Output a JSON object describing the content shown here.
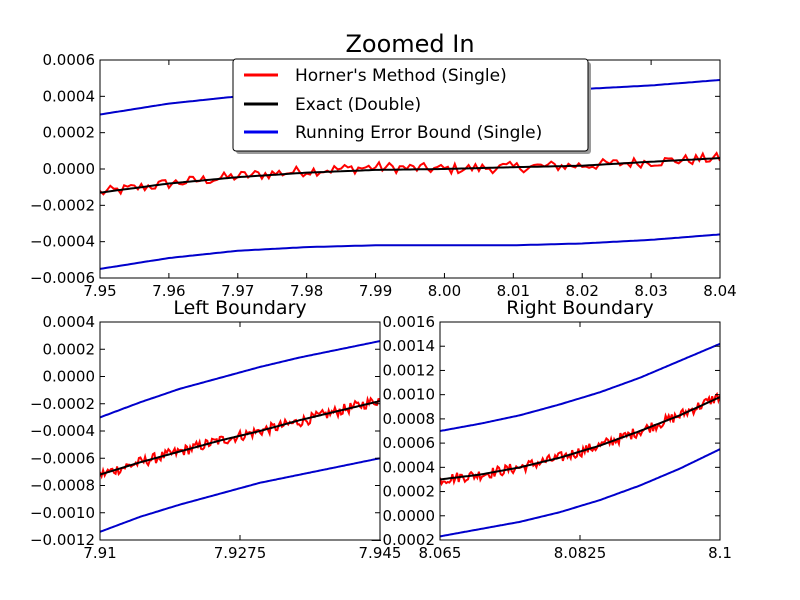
{
  "colors": {
    "horner": "#ff0000",
    "exact": "#000000",
    "bound": "#0000cc",
    "axes": "#000000"
  },
  "legend": [
    {
      "label": "Horner's Method (Single)",
      "color": "#ff0000"
    },
    {
      "label": "Exact (Double)",
      "color": "#000000"
    },
    {
      "label": "Running Error Bound (Single)",
      "color": "#0000ee"
    }
  ],
  "chart_data": [
    {
      "type": "line",
      "title": "Zoomed In",
      "xlim": [
        7.95,
        8.04
      ],
      "ylim": [
        -0.0006,
        0.0006
      ],
      "xticks": [
        7.95,
        7.96,
        7.97,
        7.98,
        7.99,
        8.0,
        8.01,
        8.02,
        8.03,
        8.04
      ],
      "xtick_labels": [
        "7.95",
        "7.96",
        "7.97",
        "7.98",
        "7.99",
        "8.00",
        "8.01",
        "8.02",
        "8.03",
        "8.04"
      ],
      "yticks": [
        -0.0006,
        -0.0004,
        -0.0002,
        0.0,
        0.0002,
        0.0004,
        0.0006
      ],
      "ytick_labels": [
        "−0.0006",
        "−0.0004",
        "−0.0002",
        "0.0000",
        "0.0002",
        "0.0004",
        "0.0006"
      ],
      "legend_position": "top-center",
      "series": [
        {
          "name": "Horner's Method (Single)",
          "color": "#ff0000",
          "style": "noisy",
          "x": [
            7.95,
            7.96,
            7.97,
            7.98,
            7.99,
            8.0,
            8.01,
            8.02,
            8.03,
            8.04
          ],
          "y": [
            -0.00013,
            -8e-05,
            -4e-05,
            -1e-05,
            1e-05,
            0.0,
            1e-05,
            2e-05,
            4e-05,
            6e-05
          ]
        },
        {
          "name": "Exact (Double)",
          "color": "#000000",
          "x": [
            7.95,
            7.96,
            7.97,
            7.98,
            7.99,
            8.0,
            8.01,
            8.02,
            8.03,
            8.04
          ],
          "y": [
            -0.00013,
            -8e-05,
            -4.5e-05,
            -2e-05,
            -5e-06,
            0.0,
            1e-05,
            1.8e-05,
            4e-05,
            6e-05
          ]
        },
        {
          "name": "Running Error Bound (Single) upper",
          "color": "#0000cc",
          "x": [
            7.95,
            7.96,
            7.97,
            7.98,
            7.99,
            8.0,
            8.01,
            8.02,
            8.03,
            8.04
          ],
          "y": [
            0.0003,
            0.00036,
            0.0004,
            0.00041,
            0.00042,
            0.00042,
            0.00043,
            0.00044,
            0.00046,
            0.00049
          ]
        },
        {
          "name": "Running Error Bound (Single) lower",
          "color": "#0000cc",
          "x": [
            7.95,
            7.96,
            7.97,
            7.98,
            7.99,
            8.0,
            8.01,
            8.02,
            8.03,
            8.04
          ],
          "y": [
            -0.00055,
            -0.00049,
            -0.00045,
            -0.00043,
            -0.00042,
            -0.00042,
            -0.00042,
            -0.00041,
            -0.00039,
            -0.00036
          ]
        }
      ]
    },
    {
      "type": "line",
      "title": "Left Boundary",
      "xlim": [
        7.91,
        7.945
      ],
      "ylim": [
        -0.0012,
        0.0004
      ],
      "xticks": [
        7.91,
        7.9275,
        7.945
      ],
      "xtick_labels": [
        "7.91",
        "7.9275",
        "7.945"
      ],
      "yticks": [
        -0.0012,
        -0.001,
        -0.0008,
        -0.0006,
        -0.0004,
        -0.0002,
        0.0,
        0.0002,
        0.0004
      ],
      "ytick_labels": [
        "−0.0012",
        "−0.0010",
        "−0.0008",
        "−0.0006",
        "−0.0004",
        "−0.0002",
        "0.0000",
        "0.0002",
        "0.0004"
      ],
      "series": [
        {
          "name": "Horner's Method (Single)",
          "color": "#ff0000",
          "style": "noisy",
          "x": [
            7.91,
            7.915,
            7.92,
            7.925,
            7.93,
            7.935,
            7.94,
            7.945
          ],
          "y": [
            -0.00072,
            -0.00063,
            -0.00055,
            -0.00047,
            -0.0004,
            -0.00033,
            -0.00025,
            -0.00017
          ]
        },
        {
          "name": "Exact (Double)",
          "color": "#000000",
          "x": [
            7.91,
            7.915,
            7.92,
            7.925,
            7.93,
            7.935,
            7.94,
            7.945
          ],
          "y": [
            -0.00072,
            -0.00063,
            -0.00055,
            -0.00047,
            -0.0004,
            -0.00032,
            -0.00025,
            -0.00018
          ]
        },
        {
          "name": "Running Error Bound (Single) upper",
          "color": "#0000cc",
          "x": [
            7.91,
            7.915,
            7.92,
            7.925,
            7.93,
            7.935,
            7.94,
            7.945
          ],
          "y": [
            -0.0003,
            -0.00019,
            -9e-05,
            -1e-05,
            7e-05,
            0.00014,
            0.0002,
            0.00026
          ]
        },
        {
          "name": "Running Error Bound (Single) lower",
          "color": "#0000cc",
          "x": [
            7.91,
            7.915,
            7.92,
            7.925,
            7.93,
            7.935,
            7.94,
            7.945
          ],
          "y": [
            -0.00114,
            -0.00103,
            -0.00094,
            -0.00086,
            -0.00078,
            -0.00072,
            -0.00066,
            -0.0006
          ]
        }
      ]
    },
    {
      "type": "line",
      "title": "Right Boundary",
      "xlim": [
        8.065,
        8.1
      ],
      "ylim": [
        -0.0002,
        0.0016
      ],
      "xticks": [
        8.065,
        8.0825,
        8.1
      ],
      "xtick_labels": [
        "8.065",
        "8.0825",
        "8.1"
      ],
      "yticks": [
        -0.0002,
        0.0,
        0.0002,
        0.0004,
        0.0006,
        0.0008,
        0.001,
        0.0012,
        0.0014,
        0.0016
      ],
      "ytick_labels": [
        "−0.0002",
        "0.0000",
        "0.0002",
        "0.0004",
        "0.0006",
        "0.0008",
        "0.0010",
        "0.0012",
        "0.0014",
        "0.0016"
      ],
      "series": [
        {
          "name": "Horner's Method (Single)",
          "color": "#ff0000",
          "style": "noisy",
          "x": [
            8.065,
            8.07,
            8.075,
            8.08,
            8.085,
            8.09,
            8.095,
            8.1
          ],
          "y": [
            0.0003,
            0.00034,
            0.0004,
            0.00048,
            0.00058,
            0.0007,
            0.00083,
            0.00099
          ]
        },
        {
          "name": "Exact (Double)",
          "color": "#000000",
          "x": [
            8.065,
            8.07,
            8.075,
            8.08,
            8.085,
            8.09,
            8.095,
            8.1
          ],
          "y": [
            0.0003,
            0.00034,
            0.0004,
            0.00048,
            0.00058,
            0.0007,
            0.00083,
            0.00098
          ]
        },
        {
          "name": "Running Error Bound (Single) upper",
          "color": "#0000cc",
          "x": [
            8.065,
            8.07,
            8.075,
            8.08,
            8.085,
            8.09,
            8.095,
            8.1
          ],
          "y": [
            0.0007,
            0.00076,
            0.00083,
            0.00092,
            0.00102,
            0.00114,
            0.00128,
            0.00142
          ]
        },
        {
          "name": "Running Error Bound (Single) lower",
          "color": "#0000cc",
          "x": [
            8.065,
            8.07,
            8.075,
            8.08,
            8.085,
            8.09,
            8.095,
            8.1
          ],
          "y": [
            -0.00017,
            -0.00011,
            -5e-05,
            3e-05,
            0.00013,
            0.00025,
            0.00039,
            0.00055
          ]
        }
      ]
    }
  ]
}
